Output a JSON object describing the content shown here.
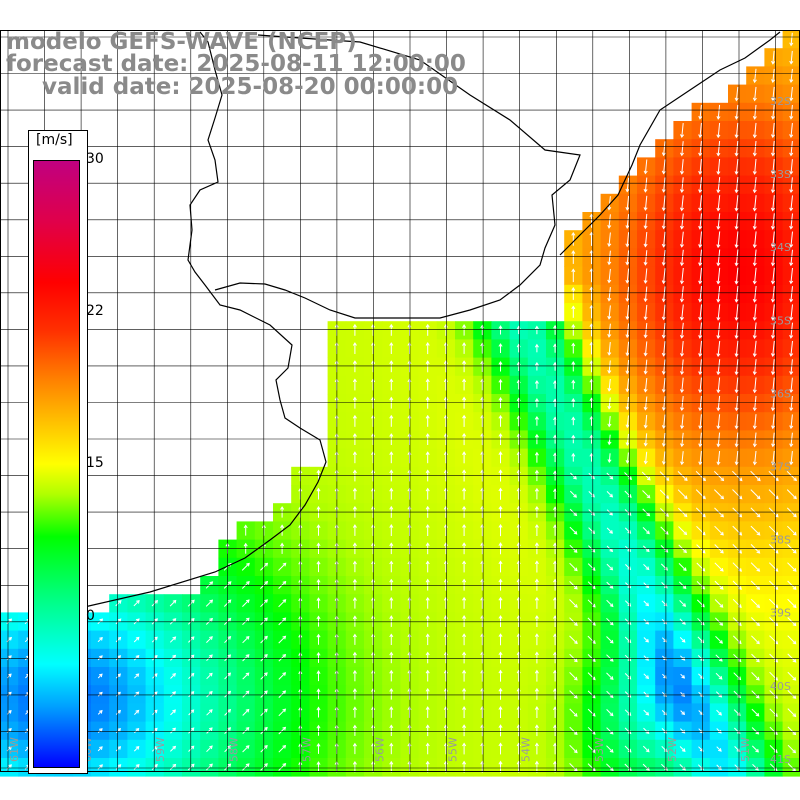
{
  "title": {
    "line1": "modelo GEFS-WAVE (NCEP)",
    "line2": "forecast date: 2025-08-11 12:00:00",
    "line3": "valid date: 2025-08-20 00:00:00"
  },
  "colorbar": {
    "unit": "[m/s]",
    "ticks": [
      "30",
      "22",
      "15",
      "0"
    ],
    "colors": {
      "min": "#0000ff",
      "low": "#00ffff",
      "mid": "#00ff00",
      "high": "#ffff00",
      "upper": "#ff8000",
      "max": "#c00080"
    }
  },
  "axes": {
    "lon_labels": [
      "61W",
      "60W",
      "59W",
      "58W",
      "57W",
      "56W",
      "55W",
      "54W",
      "53W",
      "52W",
      "51W"
    ],
    "lat_labels": [
      "32S",
      "33S",
      "34S",
      "35S",
      "36S",
      "37S",
      "38S",
      "39S",
      "40S",
      "41S"
    ]
  },
  "icons": {
    "wind_arrow": "wind-direction-arrow"
  }
}
